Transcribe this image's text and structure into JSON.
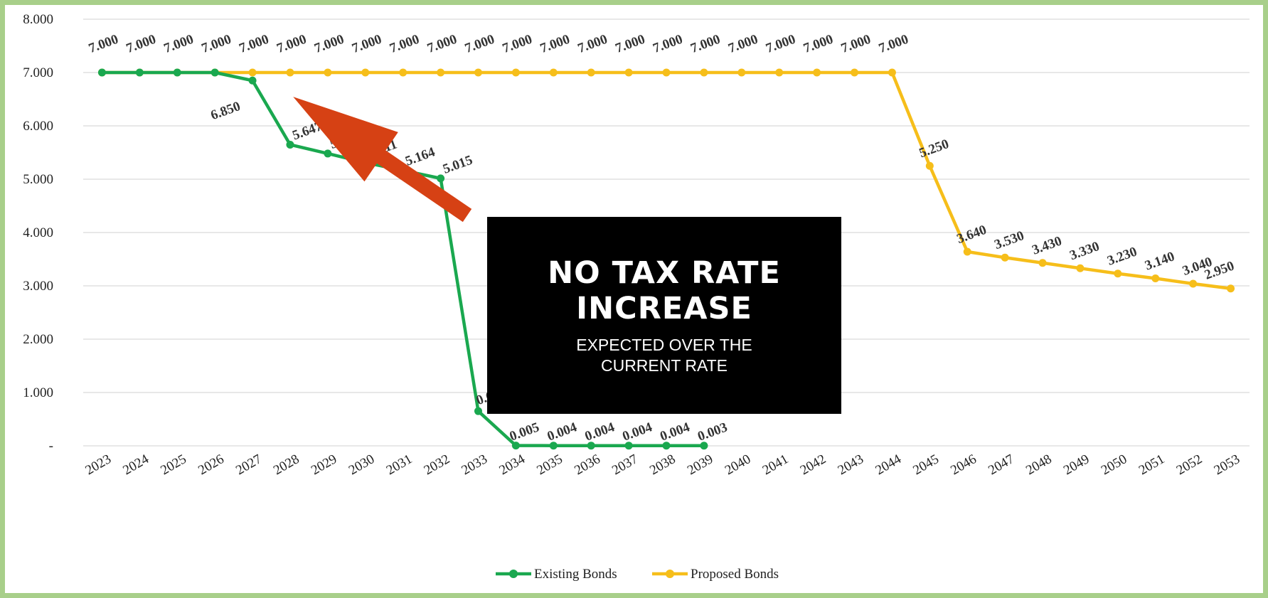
{
  "colors": {
    "existing": "#1aa84f",
    "proposed": "#f6be1a",
    "arrow": "#d64114",
    "grid": "#d9d9d9",
    "border": "#a8cf8a"
  },
  "callout": {
    "headline": "NO TAX RATE INCREASE",
    "subtext": "EXPECTED OVER THE CURRENT RATE"
  },
  "chart_data": {
    "type": "line",
    "ylim": [
      0,
      8
    ],
    "y_ticks": [
      "-",
      "1.000",
      "2.000",
      "3.000",
      "4.000",
      "5.000",
      "6.000",
      "7.000",
      "8.000"
    ],
    "grid": true,
    "legend_position": "bottom",
    "categories": [
      "2023",
      "2024",
      "2025",
      "2026",
      "2027",
      "2028",
      "2029",
      "2030",
      "2031",
      "2032",
      "2033",
      "2034",
      "2035",
      "2036",
      "2037",
      "2038",
      "2039",
      "2040",
      "2041",
      "2042",
      "2043",
      "2044",
      "2045",
      "2046",
      "2047",
      "2048",
      "2049",
      "2050",
      "2051",
      "2052",
      "2053"
    ],
    "series": [
      {
        "name": "Existing Bonds",
        "color": "#1aa84f",
        "values": [
          7.0,
          7.0,
          7.0,
          7.0,
          6.85,
          5.647,
          5.481,
          5.311,
          5.164,
          5.015,
          0.651,
          0.005,
          0.004,
          0.004,
          0.004,
          0.004,
          0.003,
          null,
          null,
          null,
          null,
          null,
          null,
          null,
          null,
          null,
          null,
          null,
          null,
          null,
          null
        ],
        "labels": [
          "",
          "",
          "",
          "",
          "6.850",
          "5.647",
          "5.481",
          "5.311",
          "5.164",
          "5.015",
          "0.651",
          "0.005",
          "0.004",
          "0.004",
          "0.004",
          "0.004",
          "0.003",
          "",
          "",
          "",
          "",
          "",
          "",
          "",
          "",
          "",
          "",
          "",
          "",
          "",
          ""
        ]
      },
      {
        "name": "Proposed Bonds",
        "color": "#f6be1a",
        "values": [
          7.0,
          7.0,
          7.0,
          7.0,
          7.0,
          7.0,
          7.0,
          7.0,
          7.0,
          7.0,
          7.0,
          7.0,
          7.0,
          7.0,
          7.0,
          7.0,
          7.0,
          7.0,
          7.0,
          7.0,
          7.0,
          7.0,
          5.25,
          3.64,
          3.53,
          3.43,
          3.33,
          3.23,
          3.14,
          3.04,
          2.95
        ],
        "labels": [
          "7.000",
          "7.000",
          "7.000",
          "7.000",
          "7.000",
          "7.000",
          "7.000",
          "7.000",
          "7.000",
          "7.000",
          "7.000",
          "7.000",
          "7.000",
          "7.000",
          "7.000",
          "7.000",
          "7.000",
          "7.000",
          "7.000",
          "7.000",
          "7.000",
          "7.000",
          "5.250",
          "3.640",
          "3.530",
          "3.430",
          "3.330",
          "3.230",
          "3.140",
          "3.040",
          "2.950"
        ]
      }
    ]
  }
}
